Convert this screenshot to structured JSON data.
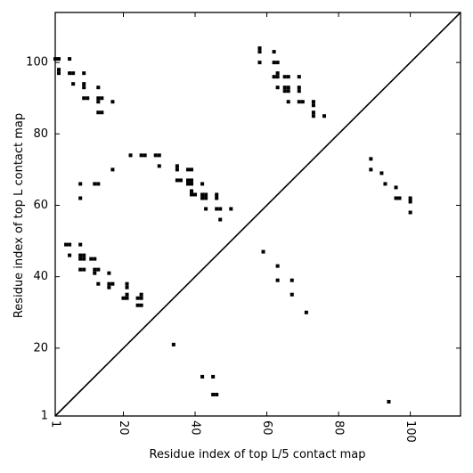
{
  "chart_data": {
    "type": "scatter",
    "title": "",
    "xlabel": "Residue index of top L/5 contact map",
    "ylabel": "Residue index of top L contact map",
    "xlim": [
      1,
      114
    ],
    "ylim": [
      1,
      114
    ],
    "xticks": [
      1,
      20,
      40,
      60,
      80,
      100
    ],
    "yticks": [
      1,
      20,
      40,
      60,
      80,
      100
    ],
    "x_tick_rotation": -90,
    "marker": "square",
    "marker_color": "#000000",
    "diagonal_line": true,
    "grid": false,
    "series": [
      {
        "points": [
          [
            1,
            101
          ],
          [
            2,
            101
          ],
          [
            2,
            98
          ],
          [
            2,
            97
          ],
          [
            5,
            101
          ],
          [
            5,
            97
          ],
          [
            6,
            97
          ],
          [
            6,
            94
          ],
          [
            9,
            97
          ],
          [
            9,
            94
          ],
          [
            9,
            93
          ],
          [
            9,
            90
          ],
          [
            10,
            90
          ],
          [
            13,
            93
          ],
          [
            13,
            90
          ],
          [
            14,
            90
          ],
          [
            13,
            89
          ],
          [
            13,
            86
          ],
          [
            14,
            86
          ],
          [
            17,
            89
          ],
          [
            8,
            66
          ],
          [
            8,
            62
          ],
          [
            12,
            66
          ],
          [
            13,
            66
          ],
          [
            17,
            70
          ],
          [
            22,
            74
          ],
          [
            25,
            74
          ],
          [
            26,
            74
          ],
          [
            29,
            74
          ],
          [
            30,
            74
          ],
          [
            30,
            71
          ],
          [
            35,
            71
          ],
          [
            35,
            70
          ],
          [
            35,
            67
          ],
          [
            36,
            67
          ],
          [
            38,
            70
          ],
          [
            39,
            70
          ],
          [
            38,
            67
          ],
          [
            39,
            67
          ],
          [
            38,
            66
          ],
          [
            39,
            66
          ],
          [
            39,
            64
          ],
          [
            39,
            63
          ],
          [
            40,
            63
          ],
          [
            42,
            66
          ],
          [
            42,
            63
          ],
          [
            43,
            63
          ],
          [
            42,
            62
          ],
          [
            43,
            62
          ],
          [
            46,
            63
          ],
          [
            46,
            62
          ],
          [
            43,
            59
          ],
          [
            46,
            59
          ],
          [
            47,
            59
          ],
          [
            50,
            59
          ],
          [
            47,
            56
          ],
          [
            4,
            49
          ],
          [
            5,
            49
          ],
          [
            8,
            49
          ],
          [
            5,
            46
          ],
          [
            8,
            46
          ],
          [
            9,
            46
          ],
          [
            8,
            45
          ],
          [
            9,
            45
          ],
          [
            11,
            45
          ],
          [
            12,
            45
          ],
          [
            8,
            42
          ],
          [
            9,
            42
          ],
          [
            12,
            42
          ],
          [
            13,
            42
          ],
          [
            12,
            41
          ],
          [
            16,
            41
          ],
          [
            13,
            38
          ],
          [
            16,
            38
          ],
          [
            17,
            38
          ],
          [
            16,
            37
          ],
          [
            21,
            38
          ],
          [
            21,
            37
          ],
          [
            21,
            35
          ],
          [
            20,
            34
          ],
          [
            21,
            34
          ],
          [
            25,
            35
          ],
          [
            24,
            34
          ],
          [
            25,
            34
          ],
          [
            24,
            32
          ],
          [
            25,
            32
          ],
          [
            58,
            104
          ],
          [
            58,
            103
          ],
          [
            62,
            103
          ],
          [
            58,
            100
          ],
          [
            62,
            100
          ],
          [
            63,
            100
          ],
          [
            63,
            97
          ],
          [
            62,
            96
          ],
          [
            63,
            96
          ],
          [
            65,
            96
          ],
          [
            66,
            96
          ],
          [
            69,
            96
          ],
          [
            63,
            93
          ],
          [
            65,
            93
          ],
          [
            66,
            93
          ],
          [
            65,
            92
          ],
          [
            66,
            92
          ],
          [
            69,
            93
          ],
          [
            69,
            92
          ],
          [
            66,
            89
          ],
          [
            69,
            89
          ],
          [
            70,
            89
          ],
          [
            73,
            89
          ],
          [
            73,
            88
          ],
          [
            73,
            86
          ],
          [
            73,
            85
          ],
          [
            76,
            85
          ],
          [
            89,
            73
          ],
          [
            89,
            70
          ],
          [
            92,
            69
          ],
          [
            93,
            66
          ],
          [
            96,
            65
          ],
          [
            96,
            62
          ],
          [
            97,
            62
          ],
          [
            100,
            62
          ],
          [
            100,
            61
          ],
          [
            100,
            58
          ],
          [
            59,
            47
          ],
          [
            63,
            43
          ],
          [
            63,
            39
          ],
          [
            67,
            39
          ],
          [
            67,
            35
          ],
          [
            71,
            30
          ],
          [
            34,
            21
          ],
          [
            42,
            12
          ],
          [
            45,
            12
          ],
          [
            45,
            7
          ],
          [
            46,
            7
          ],
          [
            94,
            5
          ]
        ]
      }
    ]
  }
}
